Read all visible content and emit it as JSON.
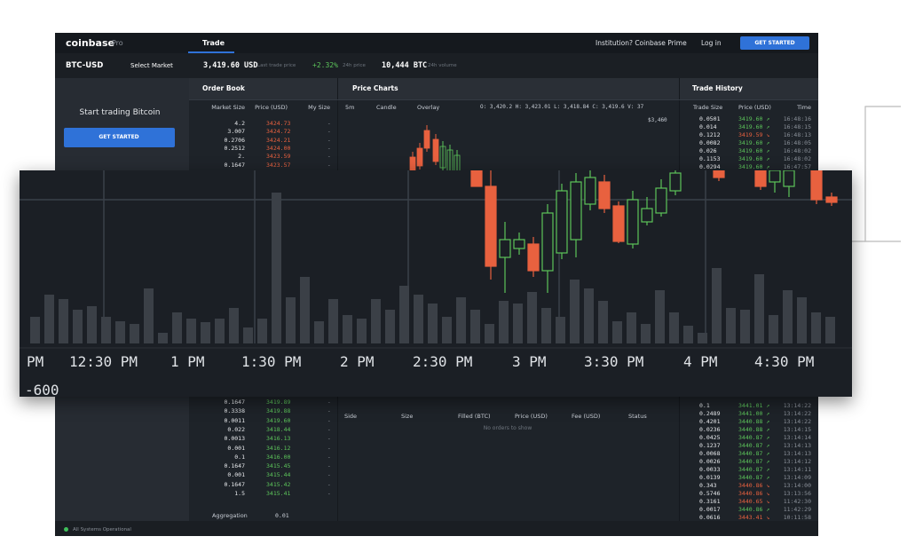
{
  "header": {
    "logo": "coinbase",
    "product": "Pro",
    "tab": "Trade",
    "institution": "Institution? Coinbase Prime",
    "login": "Log in",
    "cta": "GET STARTED"
  },
  "ticker": {
    "pair": "BTC-USD",
    "select": "Select Market",
    "price": "3,419.60 USD",
    "price_label": "Last trade price",
    "change": "+2.32%",
    "change_label": "24h price",
    "volume": "10,444 BTC",
    "volume_label": "24h volume"
  },
  "sidebar": {
    "title": "Start trading Bitcoin",
    "cta": "GET STARTED",
    "status": "All Systems Operational"
  },
  "order_book": {
    "title": "Order Book",
    "columns": [
      "Market Size",
      "Price (USD)",
      "My Size"
    ],
    "asks": [
      [
        "4.2",
        "3424.73",
        "-"
      ],
      [
        "3.007",
        "3424.72",
        "-"
      ],
      [
        "0.2706",
        "3424.21",
        "-"
      ],
      [
        "0.2512",
        "3424.00",
        "-"
      ],
      [
        "2.",
        "3423.59",
        "-"
      ],
      [
        "0.1647",
        "3423.57",
        "-"
      ]
    ],
    "bids": [
      [
        "0.1647",
        "3419.89",
        "-"
      ],
      [
        "0.3338",
        "3419.88",
        "-"
      ],
      [
        "0.0011",
        "3419.60",
        "-"
      ],
      [
        "0.022",
        "3418.44",
        "-"
      ],
      [
        "0.0013",
        "3416.13",
        "-"
      ],
      [
        "0.001",
        "3416.12",
        "-"
      ],
      [
        "0.1",
        "3416.00",
        "-"
      ],
      [
        "0.1647",
        "3415.45",
        "-"
      ],
      [
        "0.001",
        "3415.44",
        "-"
      ],
      [
        "0.1647",
        "3415.42",
        "-"
      ],
      [
        "1.5",
        "3415.41",
        "-"
      ]
    ],
    "aggregation_label": "Aggregation",
    "aggregation": "0.01"
  },
  "price_charts": {
    "title": "Price Charts",
    "controls": [
      "5m",
      "Candle",
      "Overlay"
    ],
    "ohlcv": "O: 3,420.2  H: 3,423.01  L: 3,418.84  C: 3,419.6  V: 37",
    "price_tag": "$3,460",
    "time_labels": [
      "PM",
      "12:30 PM",
      "1 PM",
      "1:30 PM",
      "2 PM",
      "2:30 PM",
      "3 PM",
      "3:30 PM",
      "4 PM",
      "4:30 PM"
    ],
    "volume_label": "-600"
  },
  "open_orders": {
    "columns": [
      "Side",
      "Size",
      "Filled (BTC)",
      "Price (USD)",
      "Fee (USD)",
      "Status"
    ],
    "empty": "No orders to show"
  },
  "trade_history": {
    "title": "Trade History",
    "columns": [
      "Trade Size",
      "Price (USD)",
      "Time"
    ],
    "recent": [
      [
        "0.0501",
        "3419.60 ↗",
        "16:48:16"
      ],
      [
        "0.014",
        "3419.60 ↗",
        "16:48:15"
      ],
      [
        "0.1212",
        "3419.59 ↘",
        "16:48:13"
      ],
      [
        "0.0082",
        "3419.60 ↗",
        "16:48:05"
      ],
      [
        "0.026",
        "3419.60 ↗",
        "16:48:02"
      ],
      [
        "0.1153",
        "3419.60 ↗",
        "16:48:02"
      ],
      [
        "0.0294",
        "3419.60 ↗",
        "16:47:57"
      ]
    ],
    "older": [
      [
        "0.1",
        "3441.01 ↗",
        "13:14:22"
      ],
      [
        "0.2489",
        "3441.00 ↗",
        "13:14:22"
      ],
      [
        "0.4201",
        "3440.88 ↗",
        "13:14:22"
      ],
      [
        "0.0236",
        "3440.88 ↗",
        "13:14:15"
      ],
      [
        "0.0425",
        "3440.87 ↗",
        "13:14:14"
      ],
      [
        "0.1237",
        "3440.87 ↗",
        "13:14:13"
      ],
      [
        "0.0068",
        "3440.87 ↗",
        "13:14:13"
      ],
      [
        "0.0026",
        "3440.87 ↗",
        "13:14:12"
      ],
      [
        "0.0033",
        "3440.87 ↗",
        "13:14:11"
      ],
      [
        "0.0139",
        "3440.87 ↗",
        "13:14:09"
      ],
      [
        "0.343",
        "3440.86 ↘",
        "13:14:00"
      ],
      [
        "0.5746",
        "3440.86 ↘",
        "13:13:56"
      ],
      [
        "0.3161",
        "3440.65 ↘",
        "11:42:30"
      ],
      [
        "0.0017",
        "3440.86 ↗",
        "11:42:29"
      ],
      [
        "0.0616",
        "3443.41 ↘",
        "10:11:58"
      ]
    ]
  }
}
